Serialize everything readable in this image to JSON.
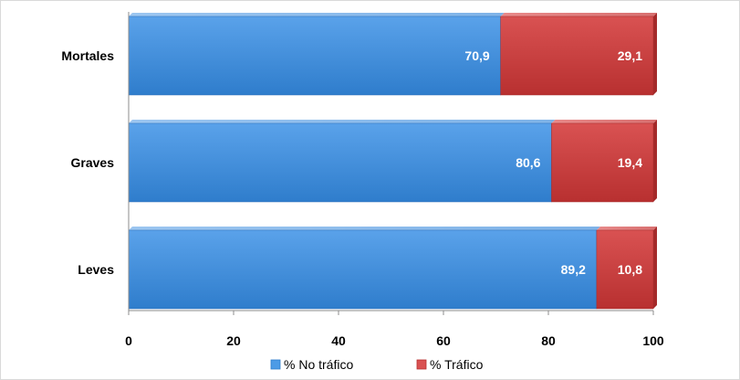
{
  "chart_data": {
    "type": "bar",
    "orientation": "horizontal",
    "stacked": true,
    "categories": [
      "Mortales",
      "Graves",
      "Leves"
    ],
    "series": [
      {
        "name": "% No tráfico",
        "values": [
          70.9,
          80.6,
          89.2
        ],
        "color": "#3b8ad9",
        "labels": [
          "70,9",
          "80,6",
          "89,2"
        ]
      },
      {
        "name": "% Tráfico",
        "values": [
          29.1,
          19.4,
          10.8
        ],
        "color": "#c93a3a",
        "labels": [
          "29,1",
          "19,4",
          "10,8"
        ]
      }
    ],
    "xlim": [
      0,
      100
    ],
    "x_ticks": [
      0,
      20,
      40,
      60,
      80,
      100
    ],
    "x_tick_labels": [
      "0",
      "20",
      "40",
      "60",
      "80",
      "100"
    ],
    "grid": false,
    "legend_position": "bottom"
  }
}
